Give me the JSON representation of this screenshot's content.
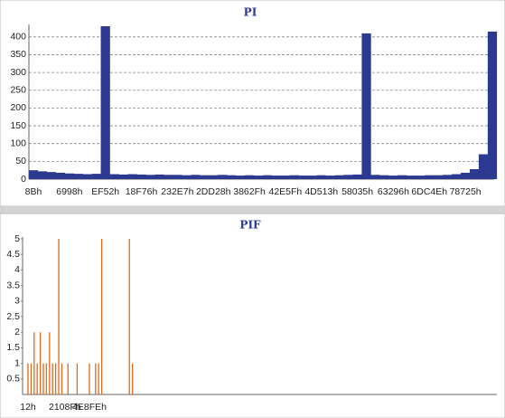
{
  "chart_data": [
    {
      "type": "bar",
      "title": "PI",
      "color": "#2b3990",
      "grid": true,
      "categories": [
        "8Bh",
        null,
        null,
        null,
        "6998h",
        null,
        null,
        null,
        "EF52h",
        null,
        null,
        null,
        "18F76h",
        null,
        null,
        null,
        "232E7h",
        null,
        null,
        null,
        "2DD28h",
        null,
        null,
        null,
        "3862Fh",
        null,
        null,
        null,
        "42E5Fh",
        null,
        null,
        null,
        "4D513h",
        null,
        null,
        null,
        "58035h",
        null,
        null,
        null,
        "63296h",
        null,
        null,
        null,
        "6DC4Eh",
        null,
        null,
        null,
        "78725h",
        null,
        null,
        null
      ],
      "values": [
        25,
        22,
        20,
        18,
        16,
        15,
        14,
        15,
        430,
        14,
        13,
        14,
        13,
        12,
        13,
        12,
        12,
        11,
        12,
        11,
        11,
        12,
        11,
        10,
        11,
        10,
        11,
        10,
        10,
        11,
        10,
        10,
        11,
        10,
        11,
        12,
        13,
        410,
        12,
        11,
        10,
        11,
        10,
        10,
        11,
        11,
        12,
        14,
        18,
        28,
        70,
        415
      ],
      "ylim": [
        0,
        430
      ],
      "yticks": [
        0,
        50,
        100,
        150,
        200,
        250,
        300,
        350,
        400
      ]
    },
    {
      "type": "bar",
      "title": "PIF",
      "color": "#e06a1e",
      "grid": false,
      "categories": [
        "12h",
        null,
        null,
        null,
        null,
        null,
        null,
        null,
        null,
        null,
        null,
        null,
        "2108Fh",
        null,
        null,
        null,
        null,
        null,
        null,
        null,
        "4E8FEh",
        null,
        null,
        null,
        null,
        null,
        null,
        null,
        null,
        null,
        null,
        null,
        null,
        null,
        null
      ],
      "values": [
        1,
        1,
        2,
        1,
        2,
        1,
        1,
        2,
        1,
        1,
        5,
        1,
        0,
        1,
        0,
        0,
        1,
        0,
        0,
        0,
        1,
        0,
        1,
        1,
        5,
        0,
        0,
        0,
        0,
        0,
        0,
        0,
        0,
        5,
        1
      ],
      "ylim": [
        0,
        5
      ],
      "yticks": [
        0.5,
        1,
        1.5,
        2,
        2.5,
        3,
        3.5,
        4,
        4.5,
        5
      ]
    }
  ]
}
